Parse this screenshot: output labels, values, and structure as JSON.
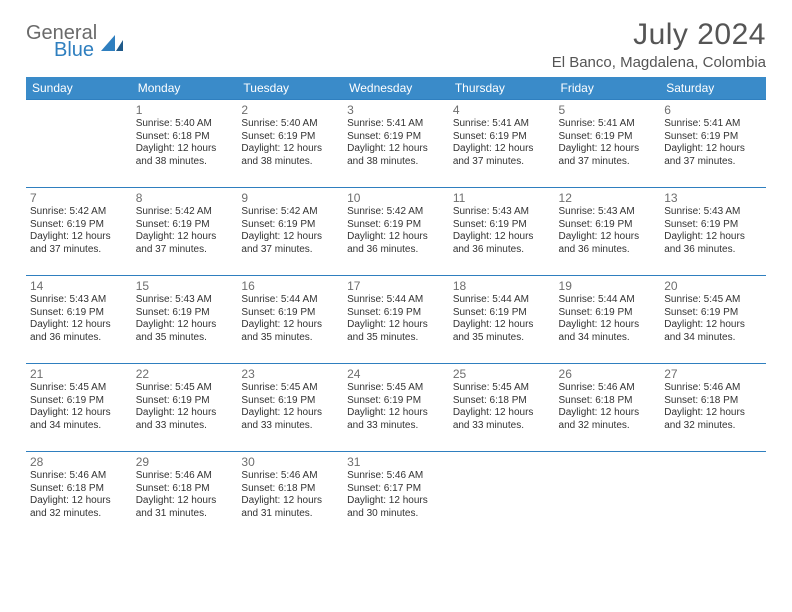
{
  "logo": {
    "word1": "General",
    "word2": "Blue",
    "color_gray": "#6a6a6a",
    "color_blue": "#2f7fbf"
  },
  "title": "July 2024",
  "location": "El Banco, Magdalena, Colombia",
  "header_bg": "#3a8bc9",
  "border_color": "#2f7fbf",
  "day_headers": [
    "Sunday",
    "Monday",
    "Tuesday",
    "Wednesday",
    "Thursday",
    "Friday",
    "Saturday"
  ],
  "weeks": [
    [
      null,
      {
        "n": "1",
        "sr": "5:40 AM",
        "ss": "6:18 PM",
        "dl": "12 hours and 38 minutes."
      },
      {
        "n": "2",
        "sr": "5:40 AM",
        "ss": "6:19 PM",
        "dl": "12 hours and 38 minutes."
      },
      {
        "n": "3",
        "sr": "5:41 AM",
        "ss": "6:19 PM",
        "dl": "12 hours and 38 minutes."
      },
      {
        "n": "4",
        "sr": "5:41 AM",
        "ss": "6:19 PM",
        "dl": "12 hours and 37 minutes."
      },
      {
        "n": "5",
        "sr": "5:41 AM",
        "ss": "6:19 PM",
        "dl": "12 hours and 37 minutes."
      },
      {
        "n": "6",
        "sr": "5:41 AM",
        "ss": "6:19 PM",
        "dl": "12 hours and 37 minutes."
      }
    ],
    [
      {
        "n": "7",
        "sr": "5:42 AM",
        "ss": "6:19 PM",
        "dl": "12 hours and 37 minutes."
      },
      {
        "n": "8",
        "sr": "5:42 AM",
        "ss": "6:19 PM",
        "dl": "12 hours and 37 minutes."
      },
      {
        "n": "9",
        "sr": "5:42 AM",
        "ss": "6:19 PM",
        "dl": "12 hours and 37 minutes."
      },
      {
        "n": "10",
        "sr": "5:42 AM",
        "ss": "6:19 PM",
        "dl": "12 hours and 36 minutes."
      },
      {
        "n": "11",
        "sr": "5:43 AM",
        "ss": "6:19 PM",
        "dl": "12 hours and 36 minutes."
      },
      {
        "n": "12",
        "sr": "5:43 AM",
        "ss": "6:19 PM",
        "dl": "12 hours and 36 minutes."
      },
      {
        "n": "13",
        "sr": "5:43 AM",
        "ss": "6:19 PM",
        "dl": "12 hours and 36 minutes."
      }
    ],
    [
      {
        "n": "14",
        "sr": "5:43 AM",
        "ss": "6:19 PM",
        "dl": "12 hours and 36 minutes."
      },
      {
        "n": "15",
        "sr": "5:43 AM",
        "ss": "6:19 PM",
        "dl": "12 hours and 35 minutes."
      },
      {
        "n": "16",
        "sr": "5:44 AM",
        "ss": "6:19 PM",
        "dl": "12 hours and 35 minutes."
      },
      {
        "n": "17",
        "sr": "5:44 AM",
        "ss": "6:19 PM",
        "dl": "12 hours and 35 minutes."
      },
      {
        "n": "18",
        "sr": "5:44 AM",
        "ss": "6:19 PM",
        "dl": "12 hours and 35 minutes."
      },
      {
        "n": "19",
        "sr": "5:44 AM",
        "ss": "6:19 PM",
        "dl": "12 hours and 34 minutes."
      },
      {
        "n": "20",
        "sr": "5:45 AM",
        "ss": "6:19 PM",
        "dl": "12 hours and 34 minutes."
      }
    ],
    [
      {
        "n": "21",
        "sr": "5:45 AM",
        "ss": "6:19 PM",
        "dl": "12 hours and 34 minutes."
      },
      {
        "n": "22",
        "sr": "5:45 AM",
        "ss": "6:19 PM",
        "dl": "12 hours and 33 minutes."
      },
      {
        "n": "23",
        "sr": "5:45 AM",
        "ss": "6:19 PM",
        "dl": "12 hours and 33 minutes."
      },
      {
        "n": "24",
        "sr": "5:45 AM",
        "ss": "6:19 PM",
        "dl": "12 hours and 33 minutes."
      },
      {
        "n": "25",
        "sr": "5:45 AM",
        "ss": "6:18 PM",
        "dl": "12 hours and 33 minutes."
      },
      {
        "n": "26",
        "sr": "5:46 AM",
        "ss": "6:18 PM",
        "dl": "12 hours and 32 minutes."
      },
      {
        "n": "27",
        "sr": "5:46 AM",
        "ss": "6:18 PM",
        "dl": "12 hours and 32 minutes."
      }
    ],
    [
      {
        "n": "28",
        "sr": "5:46 AM",
        "ss": "6:18 PM",
        "dl": "12 hours and 32 minutes."
      },
      {
        "n": "29",
        "sr": "5:46 AM",
        "ss": "6:18 PM",
        "dl": "12 hours and 31 minutes."
      },
      {
        "n": "30",
        "sr": "5:46 AM",
        "ss": "6:18 PM",
        "dl": "12 hours and 31 minutes."
      },
      {
        "n": "31",
        "sr": "5:46 AM",
        "ss": "6:17 PM",
        "dl": "12 hours and 30 minutes."
      },
      null,
      null,
      null
    ]
  ],
  "labels": {
    "sunrise": "Sunrise:",
    "sunset": "Sunset:",
    "daylight": "Daylight:"
  }
}
